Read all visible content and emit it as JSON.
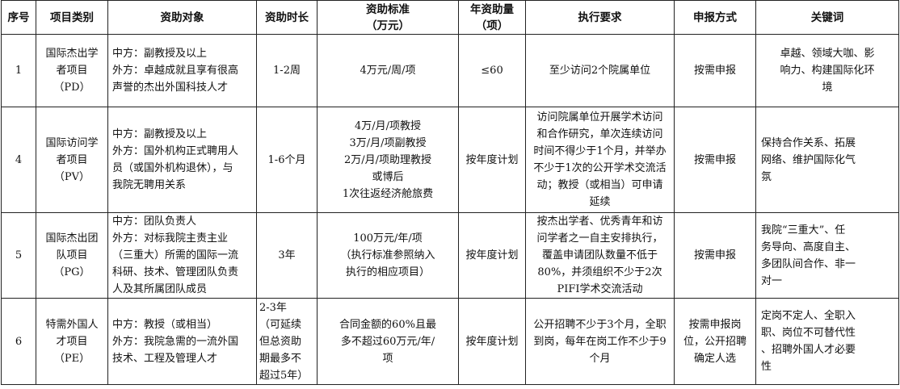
{
  "headers": [
    "序号",
    "项目类别",
    "资助对象",
    "资助时长",
    "资助标准\n（万元）",
    "年资助量\n（项）",
    "执行要求",
    "申报方式",
    "关键词"
  ],
  "rows": [
    {
      "no": "1",
      "category": "国际杰出学\n者项目\n（PD）",
      "target": "中方：副教授及以上\n外方：卓越成就且享有很高\n声誉的杰出外国科技人才",
      "duration": "1-2周",
      "standard": "4万元/周/项",
      "annual": "≤60",
      "requirement": "至少访问2个院属单位",
      "apply": "按需申报",
      "keywords": "卓越、领域大咖、影\n响力、构建国际化环\n境"
    },
    {
      "no": "4",
      "category": "国际访问学\n者项目\n（PV）",
      "target": "中方：副教授及以上\n外方：国外机构正式聘用人\n员（或国外机构退休），与\n我院无聘用关系",
      "duration": "1-6个月",
      "standard": "4万/月/项教授\n3万/月/项副教授\n2万/月/项助理教授\n或博后\n1次往返经济舱旅费",
      "annual": "按年度计划",
      "requirement": "访问院属单位开展学术访问\n和合作研究，单次连续访问\n时间不得少于1个月，并举办\n不少于1次的公开学术交流活\n动；教授（或相当）可申请\n延续",
      "apply": "按需申报",
      "keywords": "保持合作关系、拓展\n网络、维护国际化气\n氛"
    },
    {
      "no": "5",
      "category": "国际杰出团\n队项目\n（PG）",
      "target": "中方：团队负责人\n外方：对标我院主责主业\n（三重大）所需的国际一流\n科研、技术、管理团队负责\n人及其所属团队成员",
      "duration": "3年",
      "standard": "100万元/年/项\n（执行标准参照纳入\n执行的相应项目）",
      "annual": "按年度计划",
      "requirement": "按杰出学者、优秀青年和访\n问学者之一自主安排执行，\n覆盖申请团队数量不低于\n80%，并须组织不少于2次\nPIFI学术交流活动",
      "apply": "按需申报",
      "keywords": "我院“三重大”、任\n务导向、高度自主、\n多团队间合作、非一\n对一"
    },
    {
      "no": "6",
      "category": "特需外国人\n才项目\n（PE）",
      "target": "中方：教授（或相当）\n外方：我院急需的一流外国\n技术、工程及管理人才",
      "duration": "2-3年\n（可延续\n但总资助\n期最多不\n超过5年）",
      "standard": "合同金额的60%且最\n多不超过60万元/年/\n项",
      "annual": "按年度计划",
      "requirement": "公开招聘不少于3个月，全职\n到岗，每年在岗工作不少于9\n个月",
      "apply": "按需申报岗\n位，公开招聘\n确定人选",
      "keywords": "定岗不定人、全职入\n职、岗位不可替代性\n、招聘外国人才必要\n性"
    }
  ]
}
